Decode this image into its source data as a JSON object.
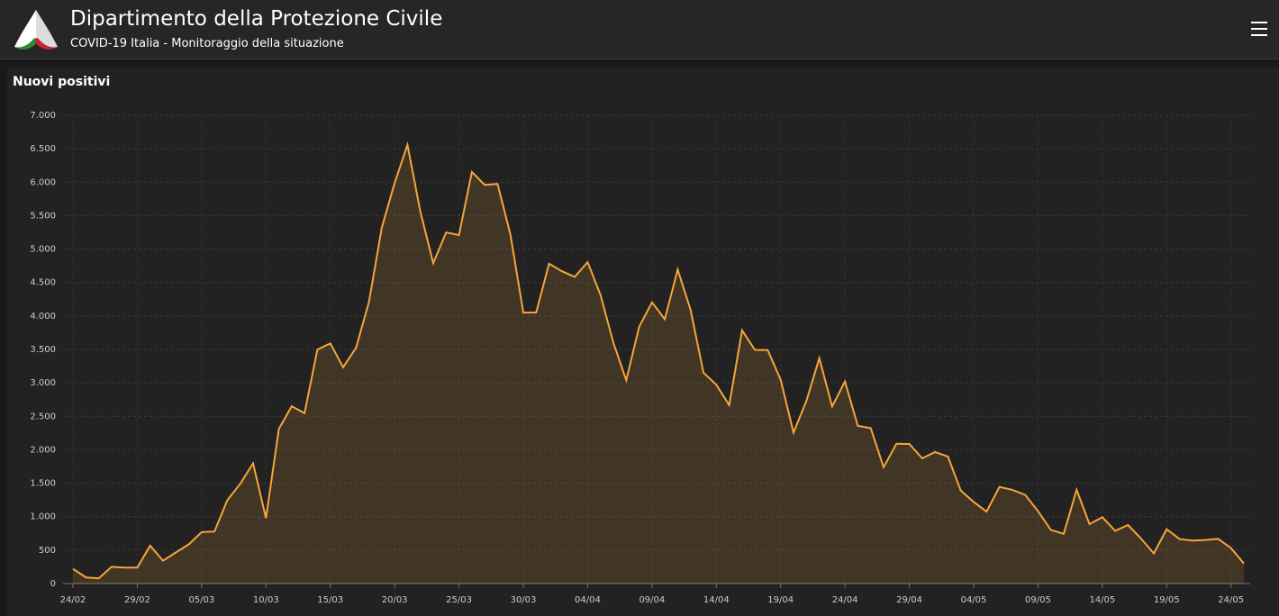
{
  "header": {
    "title": "Dipartimento della Protezione Civile",
    "subtitle": "COVID-19 Italia - Monitoraggio della situazione"
  },
  "chart_data": {
    "type": "area",
    "title": "Nuovi positivi",
    "color": "#f5a53b",
    "grid": true,
    "categories": [
      "24/02",
      null,
      null,
      null,
      null,
      "29/02",
      null,
      null,
      null,
      null,
      "05/03",
      null,
      null,
      null,
      null,
      "10/03",
      null,
      null,
      null,
      null,
      "15/03",
      null,
      null,
      null,
      null,
      "20/03",
      null,
      null,
      null,
      null,
      "25/03",
      null,
      null,
      null,
      null,
      "30/03",
      null,
      null,
      null,
      null,
      "04/04",
      null,
      null,
      null,
      null,
      "09/04",
      null,
      null,
      null,
      null,
      "14/04",
      null,
      null,
      null,
      null,
      "19/04",
      null,
      null,
      null,
      null,
      "24/04",
      null,
      null,
      null,
      null,
      "29/04",
      null,
      null,
      null,
      null,
      "04/05",
      null,
      null,
      null,
      null,
      "09/05",
      null,
      null,
      null,
      null,
      "14/05",
      null,
      null,
      null,
      null,
      "19/05",
      null,
      null,
      null,
      null,
      "24/05",
      null
    ],
    "values": [
      221,
      93,
      78,
      250,
      238,
      240,
      566,
      342,
      466,
      587,
      769,
      778,
      1247,
      1492,
      1797,
      977,
      2313,
      2651,
      2547,
      3497,
      3590,
      3233,
      3526,
      4207,
      5322,
      5986,
      6557,
      5560,
      4789,
      5249,
      5210,
      6153,
      5959,
      5974,
      5217,
      4050,
      4053,
      4782,
      4668,
      4585,
      4805,
      4316,
      3599,
      3039,
      3836,
      4204,
      3951,
      4694,
      4092,
      3153,
      2972,
      2667,
      3786,
      3493,
      3491,
      3047,
      2256,
      2729,
      3370,
      2646,
      3021,
      2357,
      2324,
      1739,
      2091,
      2086,
      1872,
      1965,
      1900,
      1389,
      1221,
      1075,
      1444,
      1401,
      1327,
      1083,
      802,
      744,
      1402,
      888,
      992,
      789,
      875,
      675,
      451,
      813,
      665,
      642,
      652,
      669,
      531,
      300
    ],
    "ylim": [
      0,
      7000
    ],
    "yticks": [
      0,
      500,
      {
        "value": 1000,
        "label": "1.000"
      },
      {
        "value": 1500,
        "label": "1.500"
      },
      {
        "value": 2000,
        "label": "2.000"
      },
      {
        "value": 2500,
        "label": "2.500"
      },
      {
        "value": 3000,
        "label": "3.000"
      },
      {
        "value": 3500,
        "label": "3.500"
      },
      {
        "value": 4000,
        "label": "4.000"
      },
      {
        "value": 4500,
        "label": "4.500"
      },
      {
        "value": 5000,
        "label": "5.000"
      },
      {
        "value": 5500,
        "label": "5.500"
      },
      {
        "value": 6000,
        "label": "6.000"
      },
      {
        "value": 6500,
        "label": "6.500"
      },
      {
        "value": 7000,
        "label": "7.000"
      }
    ]
  }
}
